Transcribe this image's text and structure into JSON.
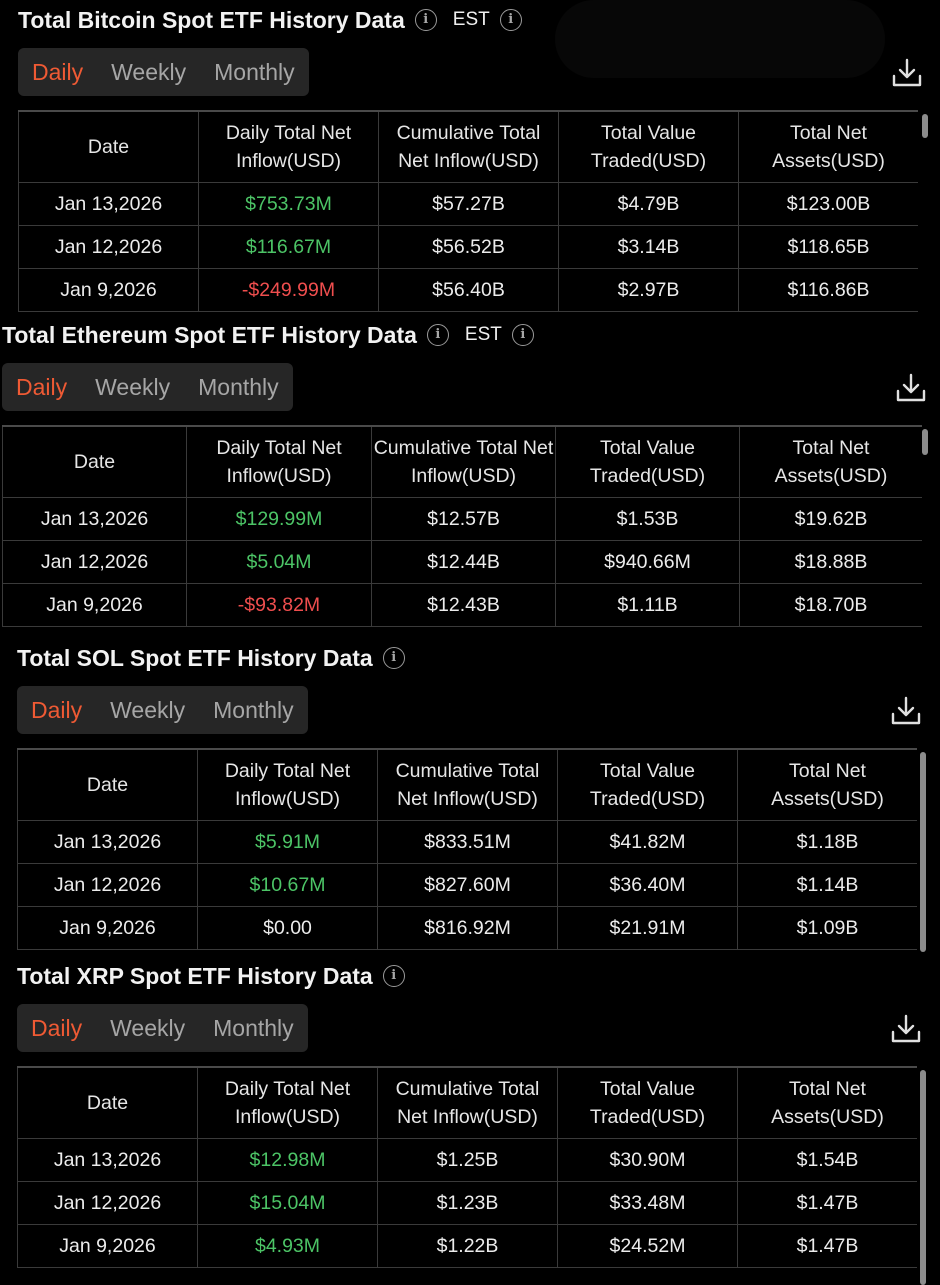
{
  "columns": [
    "Date",
    "Daily Total Net Inflow(USD)",
    "Cumulative Total Net Inflow(USD)",
    "Total Value Traded(USD)",
    "Total Net Assets(USD)"
  ],
  "tabs": [
    "Daily",
    "Weekly",
    "Monthly"
  ],
  "icons": {
    "info": "info-icon",
    "download": "download-icon"
  },
  "colors": {
    "active_tab": "#ef5a34",
    "positive": "#4cc466",
    "negative": "#ef4e4e"
  },
  "sections": [
    {
      "title": "Total Bitcoin Spot ETF History Data",
      "timezone": "EST",
      "rows": [
        {
          "date": "Jan 13,2026",
          "daily": "$753.73M",
          "cumulative": "$57.27B",
          "traded": "$4.79B",
          "assets": "$123.00B",
          "sign": "pos"
        },
        {
          "date": "Jan 12,2026",
          "daily": "$116.67M",
          "cumulative": "$56.52B",
          "traded": "$3.14B",
          "assets": "$118.65B",
          "sign": "pos"
        },
        {
          "date": "Jan 9,2026",
          "daily": "-$249.99M",
          "cumulative": "$56.40B",
          "traded": "$2.97B",
          "assets": "$116.86B",
          "sign": "neg"
        }
      ]
    },
    {
      "title": "Total Ethereum Spot ETF History Data",
      "timezone": "EST",
      "rows": [
        {
          "date": "Jan 13,2026",
          "daily": "$129.99M",
          "cumulative": "$12.57B",
          "traded": "$1.53B",
          "assets": "$19.62B",
          "sign": "pos"
        },
        {
          "date": "Jan 12,2026",
          "daily": "$5.04M",
          "cumulative": "$12.44B",
          "traded": "$940.66M",
          "assets": "$18.88B",
          "sign": "pos"
        },
        {
          "date": "Jan 9,2026",
          "daily": "-$93.82M",
          "cumulative": "$12.43B",
          "traded": "$1.11B",
          "assets": "$18.70B",
          "sign": "neg"
        }
      ]
    },
    {
      "title": "Total SOL Spot ETF History Data",
      "timezone": "",
      "rows": [
        {
          "date": "Jan 13,2026",
          "daily": "$5.91M",
          "cumulative": "$833.51M",
          "traded": "$41.82M",
          "assets": "$1.18B",
          "sign": "pos"
        },
        {
          "date": "Jan 12,2026",
          "daily": "$10.67M",
          "cumulative": "$827.60M",
          "traded": "$36.40M",
          "assets": "$1.14B",
          "sign": "pos"
        },
        {
          "date": "Jan 9,2026",
          "daily": "$0.00",
          "cumulative": "$816.92M",
          "traded": "$21.91M",
          "assets": "$1.09B",
          "sign": "zero"
        }
      ]
    },
    {
      "title": "Total XRP Spot ETF History Data",
      "timezone": "",
      "rows": [
        {
          "date": "Jan 13,2026",
          "daily": "$12.98M",
          "cumulative": "$1.25B",
          "traded": "$30.90M",
          "assets": "$1.54B",
          "sign": "pos"
        },
        {
          "date": "Jan 12,2026",
          "daily": "$15.04M",
          "cumulative": "$1.23B",
          "traded": "$33.48M",
          "assets": "$1.47B",
          "sign": "pos"
        },
        {
          "date": "Jan 9,2026",
          "daily": "$4.93M",
          "cumulative": "$1.22B",
          "traded": "$24.52M",
          "assets": "$1.47B",
          "sign": "pos"
        }
      ]
    }
  ]
}
